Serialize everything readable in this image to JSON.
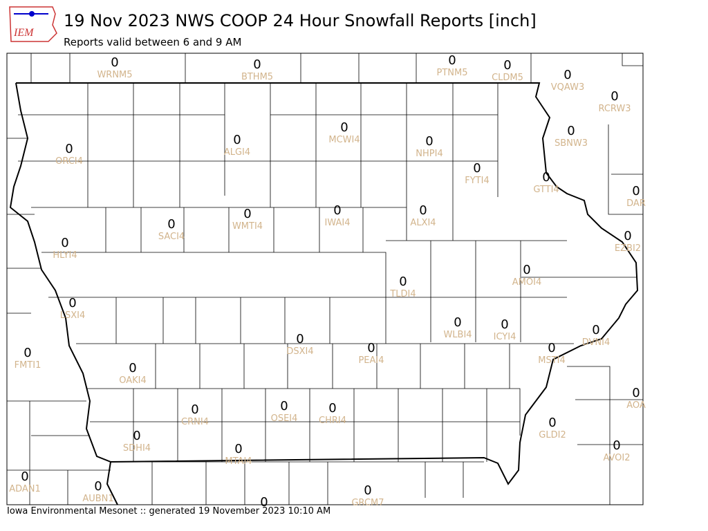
{
  "title": "19 Nov 2023 NWS COOP 24 Hour Snowfall Reports [inch]",
  "subtitle": "Reports valid between 6 and 9 AM",
  "footer": "Iowa Environmental Mesonet :: generated 19 November 2023 10:10 AM",
  "stations": [
    {
      "value": 0,
      "id": "WRNM5"
    },
    {
      "value": 0,
      "id": "BTHM5"
    },
    {
      "value": 0,
      "id": "PTNM5"
    },
    {
      "value": 0,
      "id": "CLDM5"
    },
    {
      "value": 0,
      "id": "VQAW3"
    },
    {
      "value": 0,
      "id": "RCRW3"
    },
    {
      "value": 0,
      "id": "SBNW3"
    },
    {
      "value": 0,
      "id": "ORCI4"
    },
    {
      "value": 0,
      "id": "ALGI4"
    },
    {
      "value": 0,
      "id": "MCWI4"
    },
    {
      "value": 0,
      "id": "NHPI4"
    },
    {
      "value": 0,
      "id": "FYTI4"
    },
    {
      "value": 0,
      "id": "GTTI4"
    },
    {
      "value": 0,
      "id": "DAR"
    },
    {
      "value": 0,
      "id": "WMTI4"
    },
    {
      "value": 0,
      "id": "IWAI4"
    },
    {
      "value": 0,
      "id": "ALXI4"
    },
    {
      "value": 0,
      "id": "SACI4"
    },
    {
      "value": 0,
      "id": "HLYI4"
    },
    {
      "value": 0,
      "id": "EZBI2"
    },
    {
      "value": 0,
      "id": "AMOI4"
    },
    {
      "value": 0,
      "id": "TLDI4"
    },
    {
      "value": 0,
      "id": "LSXI4"
    },
    {
      "value": 0,
      "id": "WLBI4"
    },
    {
      "value": 0,
      "id": "ICYI4"
    },
    {
      "value": 0,
      "id": "DVNI4"
    },
    {
      "value": 0,
      "id": "DSXI4"
    },
    {
      "value": 0,
      "id": "PEAI4"
    },
    {
      "value": 0,
      "id": "MSTI4"
    },
    {
      "value": 0,
      "id": "FMTI1"
    },
    {
      "value": 0,
      "id": "OAKI4"
    },
    {
      "value": 0,
      "id": "AOA"
    },
    {
      "value": 0,
      "id": "CRNI4"
    },
    {
      "value": 0,
      "id": "OSEI4"
    },
    {
      "value": 0,
      "id": "CHRI4"
    },
    {
      "value": 0,
      "id": "GLDI2"
    },
    {
      "value": 0,
      "id": "SDHI4"
    },
    {
      "value": 0,
      "id": "MTAI4"
    },
    {
      "value": 0,
      "id": "AVOI2"
    },
    {
      "value": 0,
      "id": "ADAN1"
    },
    {
      "value": 0,
      "id": "AUBN1"
    },
    {
      "value": 0,
      "id": "GRCM7"
    },
    {
      "value": 0,
      "id": null
    }
  ]
}
